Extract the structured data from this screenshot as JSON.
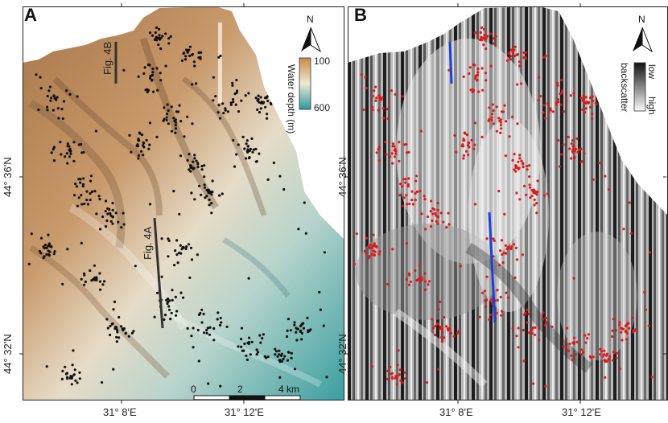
{
  "panels": {
    "a": {
      "label": "A",
      "legend_title": "Water depth (m)",
      "legend_min": "100",
      "legend_max": "600",
      "legend_colors": {
        "shallow": "#c98a45",
        "deep": "#2a9aa0"
      },
      "north": "N",
      "profiles": [
        {
          "label": "Fig. 4B"
        },
        {
          "label": "Fig. 4A"
        }
      ],
      "scalebar": {
        "ticks": [
          "0",
          "2",
          "4 km"
        ]
      }
    },
    "b": {
      "label": "B",
      "legend_title": "backscatter",
      "legend_low": "low",
      "legend_high": "high",
      "north": "N"
    }
  },
  "axes": {
    "lat_labels": [
      "44° 36'N",
      "44° 32'N"
    ],
    "lon_labels": [
      "31° 8'E",
      "31° 12'E"
    ]
  },
  "colors": {
    "frame": "#222222",
    "points_a": "#111111",
    "points_b": "#e01818",
    "profile_line_b": "#1f3fd8"
  }
}
